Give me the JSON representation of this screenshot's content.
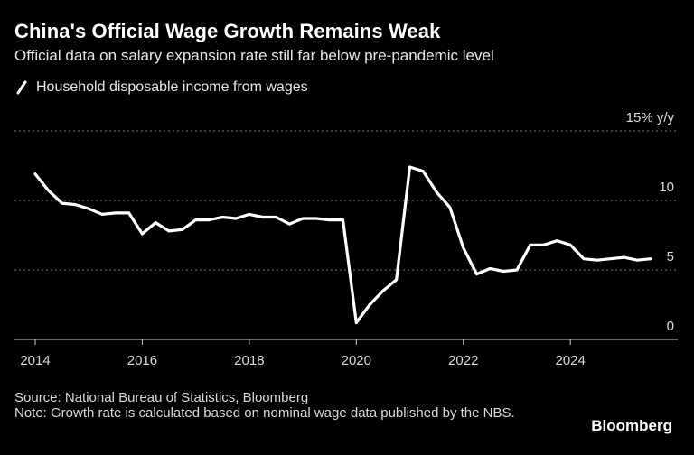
{
  "header": {
    "title": "China's Official Wage Growth Remains Weak",
    "subtitle": "Official data on salary expansion rate still far below pre-pandemic level"
  },
  "footer": {
    "source": "Source: National Bureau of Statistics, Bloomberg",
    "note": "Note: Growth rate is calculated based on nominal wage data published by the NBS.",
    "logo": "Bloomberg"
  },
  "colors": {
    "background": "#000000",
    "line": "#ffffff",
    "grid": "#777777"
  },
  "chart_data": {
    "type": "line",
    "title": "China's Official Wage Growth Remains Weak",
    "subtitle": "Official data on salary expansion rate still far below pre-pandemic level",
    "ylabel": "15% y/y",
    "ylim": [
      0,
      15
    ],
    "xlim": [
      2013.75,
      2026.0
    ],
    "yticks": [
      {
        "value": 0,
        "label": "0"
      },
      {
        "value": 5,
        "label": "5"
      },
      {
        "value": 10,
        "label": "10"
      },
      {
        "value": 15,
        "label": "15% y/y"
      }
    ],
    "xticks": [
      {
        "value": 2014,
        "label": "2014"
      },
      {
        "value": 2016,
        "label": "2016"
      },
      {
        "value": 2018,
        "label": "2018"
      },
      {
        "value": 2020,
        "label": "2020"
      },
      {
        "value": 2022,
        "label": "2022"
      },
      {
        "value": 2024,
        "label": "2024"
      }
    ],
    "grid": true,
    "legend": "top-left",
    "series": [
      {
        "name": "Household disposable income from wages",
        "color": "#ffffff",
        "x": [
          2014.0,
          2014.25,
          2014.5,
          2014.75,
          2015.0,
          2015.25,
          2015.5,
          2015.75,
          2016.0,
          2016.25,
          2016.5,
          2016.75,
          2017.0,
          2017.25,
          2017.5,
          2017.75,
          2018.0,
          2018.25,
          2018.5,
          2018.75,
          2019.0,
          2019.25,
          2019.5,
          2019.75,
          2020.0,
          2020.25,
          2020.5,
          2020.75,
          2021.0,
          2021.25,
          2021.5,
          2021.75,
          2022.0,
          2022.25,
          2022.5,
          2022.75,
          2023.0,
          2023.25,
          2023.5,
          2023.75,
          2024.0,
          2024.25,
          2024.5,
          2024.75,
          2025.0,
          2025.25,
          2025.5
        ],
        "values": [
          11.9,
          10.7,
          9.8,
          9.7,
          9.4,
          9.0,
          9.1,
          9.1,
          7.6,
          8.4,
          7.8,
          7.9,
          8.6,
          8.6,
          8.8,
          8.7,
          9.0,
          8.8,
          8.8,
          8.3,
          8.7,
          8.7,
          8.6,
          8.6,
          1.2,
          2.5,
          3.5,
          4.3,
          12.4,
          12.1,
          10.6,
          9.5,
          6.6,
          4.7,
          5.1,
          4.9,
          5.0,
          6.8,
          6.8,
          7.1,
          6.8,
          5.8,
          5.7,
          5.8,
          5.9,
          5.7,
          5.8
        ]
      }
    ]
  }
}
